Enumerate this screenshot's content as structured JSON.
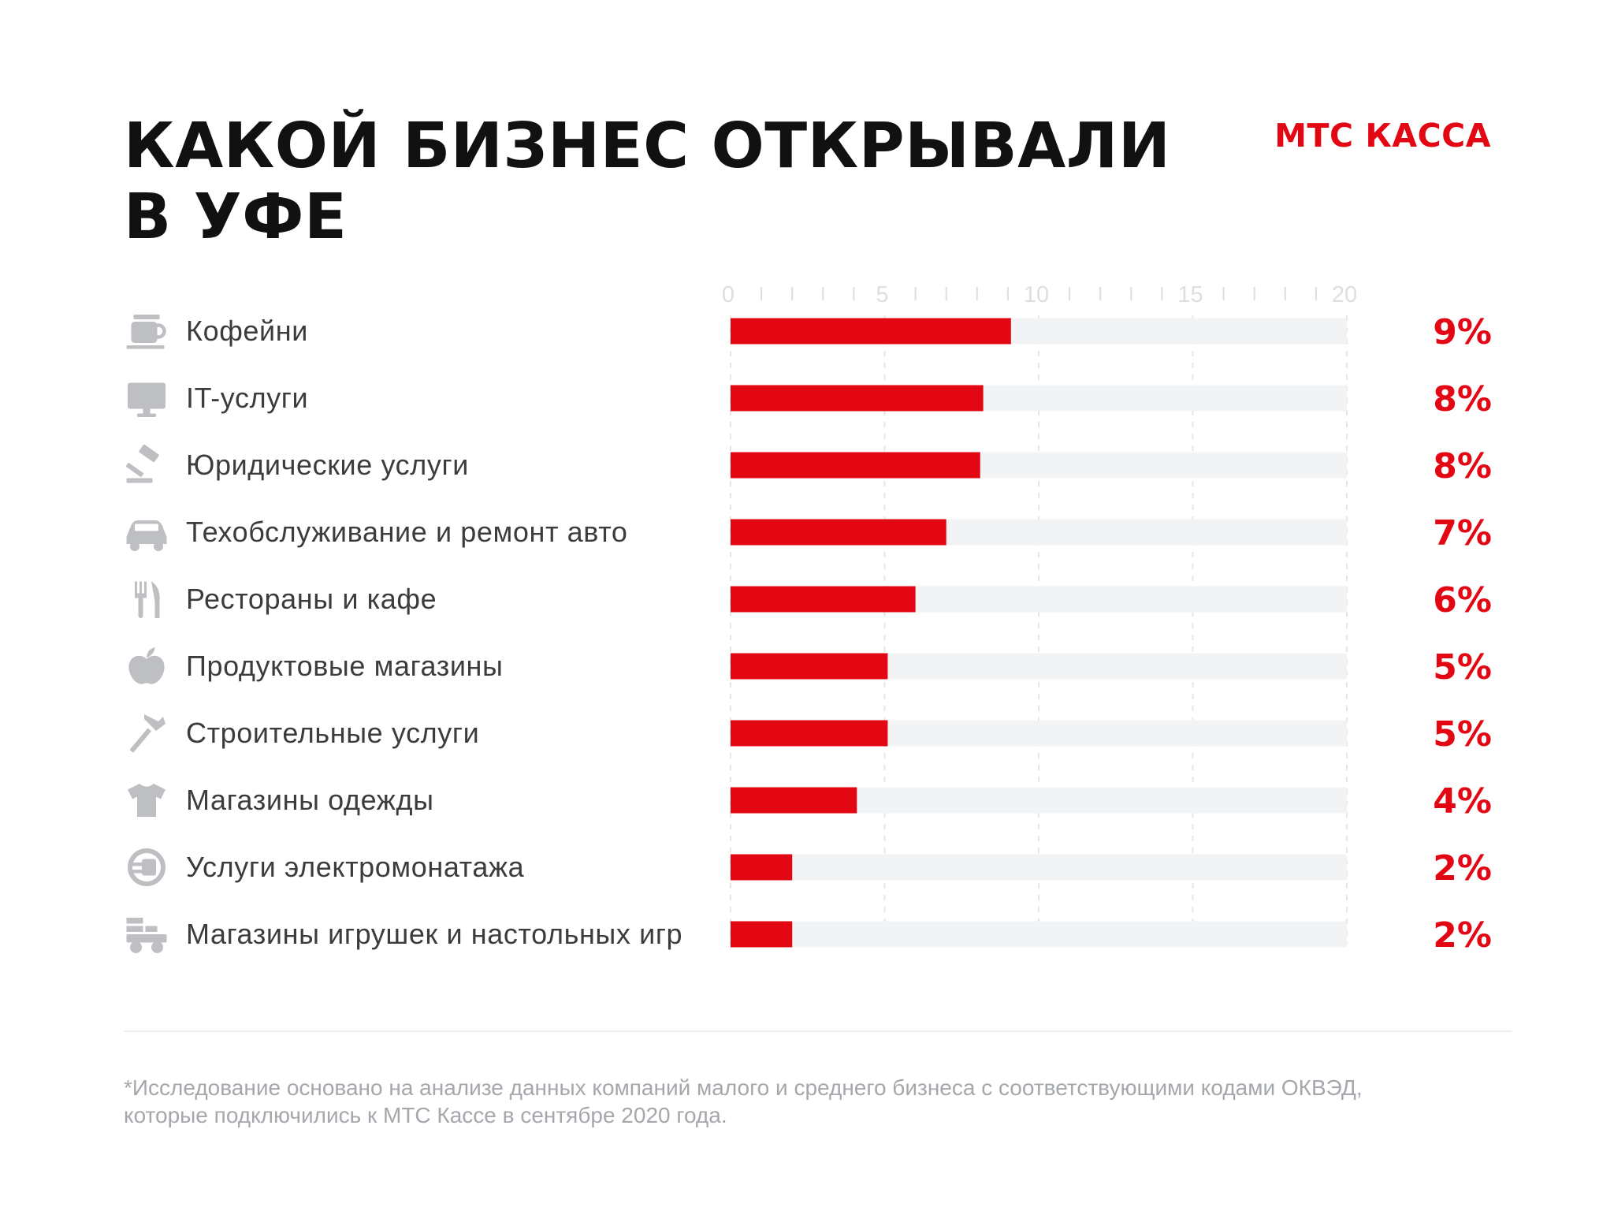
{
  "title": {
    "line1": "КАКОЙ БИЗНЕС ОТКРЫВАЛИ",
    "line2": "В УФЕ"
  },
  "logo": {
    "text": "МТС КАССА"
  },
  "colors": {
    "accent": "#e30613",
    "track": "#f1f3f4",
    "icon": "#bdbfc2",
    "label": "#3c3c3c",
    "tick": "#dcdee0"
  },
  "chart_data": {
    "type": "bar",
    "orientation": "horizontal",
    "xlim": [
      0,
      20
    ],
    "tick_labels": [
      "0",
      "5",
      "10",
      "15",
      "20"
    ],
    "minor_tick_step": 1,
    "grid": true,
    "categories": [
      "Кофейни",
      "IT-услуги",
      "Юридические услуги",
      "Техобслуживание и ремонт авто",
      "Рестораны и кафе",
      "Продуктовые магазины",
      "Строительные услуги",
      "Магазины одежды",
      "Услуги электромонатажа",
      "Магазины игрушек и настольных игр"
    ],
    "icons": [
      "coffee-cup-icon",
      "monitor-icon",
      "gavel-icon",
      "car-icon",
      "fork-knife-icon",
      "apple-icon",
      "hammer-icon",
      "tshirt-icon",
      "power-plug-icon",
      "toy-truck-icon"
    ],
    "values": [
      9.1,
      8.2,
      8.1,
      7.0,
      6.0,
      5.1,
      5.1,
      4.1,
      2.0,
      2.0
    ],
    "value_labels": [
      "9%",
      "8%",
      "8%",
      "7%",
      "6%",
      "5%",
      "5%",
      "4%",
      "2%",
      "2%"
    ]
  },
  "footnote": {
    "line1": "*Исследование основано на анализе данных компаний малого и среднего бизнеса с соответствующими кодами ОКВЭД,",
    "line2": "которые подключились к МТС Кассе в сентябре 2020 года."
  }
}
